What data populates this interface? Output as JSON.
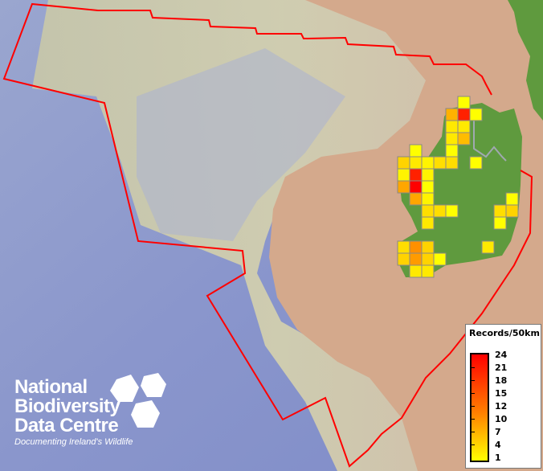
{
  "legend": {
    "title": "Records/50km",
    "ticks": [
      "24",
      "21",
      "18",
      "15",
      "12",
      "10",
      "7",
      "4",
      "1"
    ],
    "color_low": "#ffff00",
    "color_high": "#ff0000"
  },
  "logo": {
    "line1": "National",
    "line2": "Biodiversity",
    "line3": "Data Centre",
    "tagline": "Documenting Ireland's Wildlife"
  },
  "colors": {
    "boundary": "#ff0000",
    "land_ireland": "#5f9a3e",
    "cell_border": "#888888"
  },
  "grid_cells": [
    {
      "row": 0,
      "col": 5,
      "records": 1
    },
    {
      "row": 1,
      "col": 4,
      "records": 8
    },
    {
      "row": 1,
      "col": 5,
      "records": 21
    },
    {
      "row": 1,
      "col": 6,
      "records": 1
    },
    {
      "row": 2,
      "col": 4,
      "records": 3
    },
    {
      "row": 2,
      "col": 5,
      "records": 3
    },
    {
      "row": 3,
      "col": 4,
      "records": 3
    },
    {
      "row": 3,
      "col": 5,
      "records": 7
    },
    {
      "row": 4,
      "col": 1,
      "records": 1
    },
    {
      "row": 4,
      "col": 4,
      "records": 1
    },
    {
      "row": 5,
      "col": 0,
      "records": 5
    },
    {
      "row": 5,
      "col": 1,
      "records": 3
    },
    {
      "row": 5,
      "col": 2,
      "records": 2
    },
    {
      "row": 5,
      "col": 3,
      "records": 4
    },
    {
      "row": 5,
      "col": 4,
      "records": 4
    },
    {
      "row": 5,
      "col": 6,
      "records": 1
    },
    {
      "row": 6,
      "col": 0,
      "records": 2
    },
    {
      "row": 6,
      "col": 1,
      "records": 21
    },
    {
      "row": 6,
      "col": 2,
      "records": 2
    },
    {
      "row": 7,
      "col": 0,
      "records": 9
    },
    {
      "row": 7,
      "col": 1,
      "records": 24
    },
    {
      "row": 7,
      "col": 2,
      "records": 1
    },
    {
      "row": 8,
      "col": 1,
      "records": 9
    },
    {
      "row": 8,
      "col": 2,
      "records": 2
    },
    {
      "row": 8,
      "col": 9,
      "records": 1
    },
    {
      "row": 9,
      "col": 2,
      "records": 4
    },
    {
      "row": 9,
      "col": 3,
      "records": 4
    },
    {
      "row": 9,
      "col": 4,
      "records": 1
    },
    {
      "row": 9,
      "col": 8,
      "records": 4
    },
    {
      "row": 9,
      "col": 9,
      "records": 5
    },
    {
      "row": 10,
      "col": 2,
      "records": 3
    },
    {
      "row": 10,
      "col": 8,
      "records": 1
    },
    {
      "row": 12,
      "col": 0,
      "records": 4
    },
    {
      "row": 12,
      "col": 1,
      "records": 11
    },
    {
      "row": 12,
      "col": 2,
      "records": 5
    },
    {
      "row": 12,
      "col": 7,
      "records": 3
    },
    {
      "row": 13,
      "col": 0,
      "records": 5
    },
    {
      "row": 13,
      "col": 1,
      "records": 10
    },
    {
      "row": 13,
      "col": 2,
      "records": 5
    },
    {
      "row": 13,
      "col": 3,
      "records": 1
    },
    {
      "row": 14,
      "col": 1,
      "records": 3
    },
    {
      "row": 14,
      "col": 2,
      "records": 3
    }
  ]
}
